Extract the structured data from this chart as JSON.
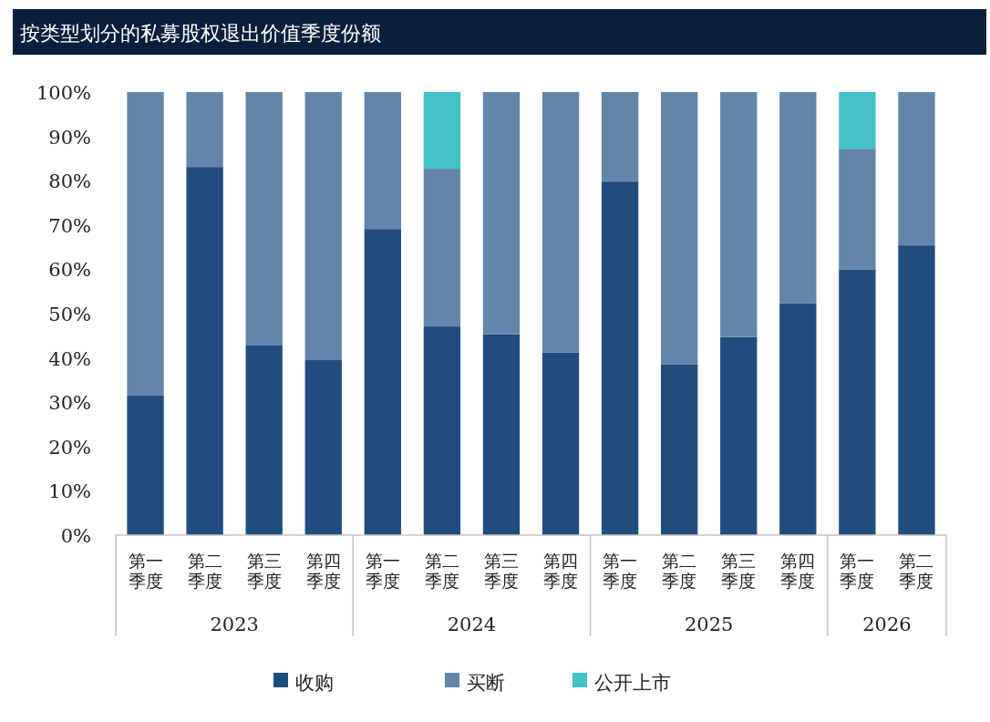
{
  "chart_data": {
    "type": "bar",
    "stacked": true,
    "title": "按类型划分的私募股权退出价值季度份额",
    "categories": [
      "第一季度",
      "第二季度",
      "第三季度",
      "第四季度",
      "第一季度",
      "第二季度",
      "第三季度",
      "第四季度",
      "第一季度",
      "第二季度",
      "第三季度",
      "第四季度",
      "第一季度",
      "第二季度"
    ],
    "annotations": [
      "2023",
      "2024",
      "2025",
      "2026"
    ],
    "series": [
      {
        "name": "收购",
        "color": "#1f4e7e",
        "values": [
          31.5,
          83.1,
          42.8,
          39.5,
          69.1,
          47.1,
          45.3,
          41.2,
          79.8,
          38.5,
          44.7,
          52.3,
          59.9,
          65.4
        ]
      },
      {
        "name": "买断",
        "color": "#6286a9",
        "values": [
          68.5,
          16.9,
          57.2,
          60.5,
          30.9,
          35.6,
          54.7,
          58.8,
          20.2,
          61.5,
          55.3,
          47.7,
          27.3,
          34.6
        ]
      },
      {
        "name": "公开上市",
        "color": "#42c1c9",
        "values": [
          null,
          null,
          null,
          null,
          null,
          17.3,
          null,
          null,
          null,
          null,
          null,
          null,
          12.8,
          null
        ]
      }
    ],
    "ylim": [
      0,
      100
    ],
    "yticks": [
      {
        "value": 0,
        "label": "0%"
      },
      {
        "value": 10,
        "label": "10%"
      },
      {
        "value": 20,
        "label": "20%"
      },
      {
        "value": 30,
        "label": "30%"
      },
      {
        "value": 40,
        "label": "40%"
      },
      {
        "value": 50,
        "label": "50%"
      },
      {
        "value": 60,
        "label": "60%"
      },
      {
        "value": 70,
        "label": "70%"
      },
      {
        "value": 80,
        "label": "80%"
      },
      {
        "value": 90,
        "label": "90%"
      },
      {
        "value": 100,
        "label": "100%"
      }
    ],
    "legend": "bottom"
  }
}
